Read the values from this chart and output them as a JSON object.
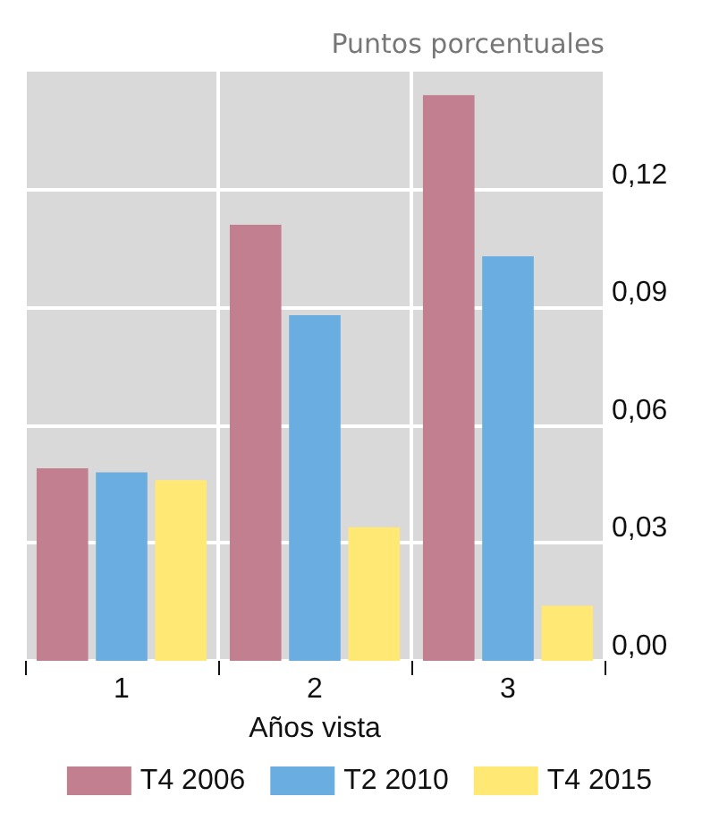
{
  "chart_data": {
    "type": "bar",
    "xlabel": "Años vista",
    "ylabel": "Puntos porcentuales",
    "categories": [
      "1",
      "2",
      "3"
    ],
    "series": [
      {
        "name": "T4 2006",
        "color": "#c27f8f",
        "values": [
          0.049,
          0.111,
          0.144
        ]
      },
      {
        "name": "T2 2010",
        "color": "#6aade0",
        "values": [
          0.048,
          0.088,
          0.103
        ]
      },
      {
        "name": "T4 2015",
        "color": "#ffe873",
        "values": [
          0.046,
          0.034,
          0.014
        ]
      }
    ],
    "ylim": [
      0,
      0.15
    ],
    "yticks": [
      {
        "value": 0,
        "label": "0,00"
      },
      {
        "value": 0.03,
        "label": "0,03"
      },
      {
        "value": 0.06,
        "label": "0,06"
      },
      {
        "value": 0.09,
        "label": "0,09"
      },
      {
        "value": 0.12,
        "label": "0,12"
      }
    ],
    "grid": true,
    "legend": "bottom"
  }
}
